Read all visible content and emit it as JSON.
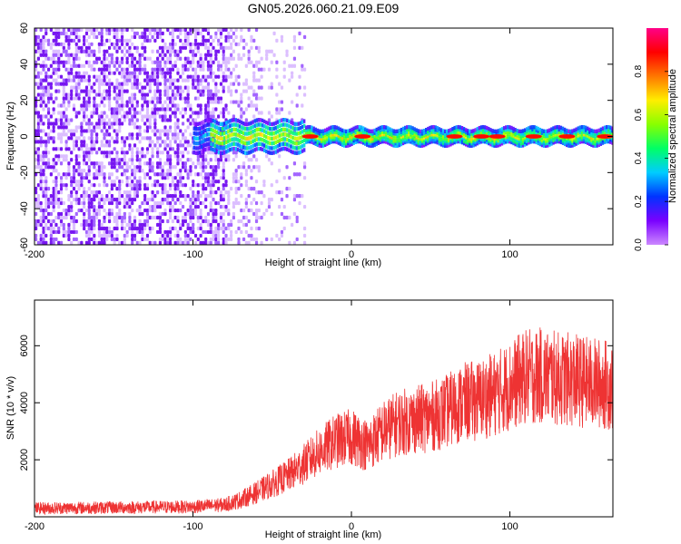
{
  "title": "GN05.2026.060.21.09.E09",
  "chart_data": [
    {
      "type": "heatmap",
      "xlabel": "Height of straight line (km)",
      "ylabel": "Frequency (Hz)",
      "xlim": [
        -200,
        165
      ],
      "ylim": [
        -60,
        60
      ],
      "x_ticks": [
        -200,
        -100,
        0,
        100
      ],
      "y_ticks": [
        60,
        40,
        20,
        0,
        -20,
        -40,
        -60
      ],
      "colorbar": {
        "label": "Normalized spectral amplitude",
        "range": [
          0.0,
          1.0
        ],
        "ticks": [
          "0.0",
          "0.2",
          "0.4",
          "0.6",
          "0.8"
        ],
        "colormap": [
          "#cc88ff",
          "#7a00ff",
          "#0033ff",
          "#00ccff",
          "#00ff66",
          "#88ff00",
          "#ffee00",
          "#ff7700",
          "#ff0000",
          "#ff0088"
        ]
      },
      "features": {
        "noise_region_x": [
          -200,
          -30
        ],
        "tone_region_x": [
          -100,
          165
        ],
        "tone_frequency_hz": 0,
        "hot_spots_x": [
          -26,
          7,
          65,
          82,
          92,
          115,
          136,
          160
        ]
      }
    },
    {
      "type": "line",
      "xlabel": "Height of straight line (km)",
      "ylabel": "SNR (10 * v/v)",
      "xlim": [
        -200,
        165
      ],
      "ylim": [
        0,
        7600
      ],
      "x_ticks": [
        -200,
        -100,
        0,
        100
      ],
      "y_ticks": [
        2000,
        4000,
        6000
      ],
      "color": "#ee3333",
      "series": [
        {
          "x": [
            -200,
            -180,
            -160,
            -140,
            -120,
            -100,
            -80,
            -70,
            -60,
            -50,
            -40,
            -30,
            -20,
            -10,
            0,
            10,
            20,
            30,
            40,
            50,
            60,
            70,
            80,
            90,
            100,
            110,
            120,
            130,
            140,
            150,
            160,
            165
          ],
          "y": [
            300,
            310,
            320,
            330,
            340,
            350,
            420,
            600,
            850,
            1150,
            1450,
            1850,
            2300,
            2650,
            2800,
            2500,
            3000,
            3300,
            3400,
            3500,
            3700,
            4000,
            4100,
            4300,
            4600,
            4900,
            4950,
            4850,
            4800,
            4700,
            4650,
            4600
          ]
        }
      ]
    }
  ]
}
